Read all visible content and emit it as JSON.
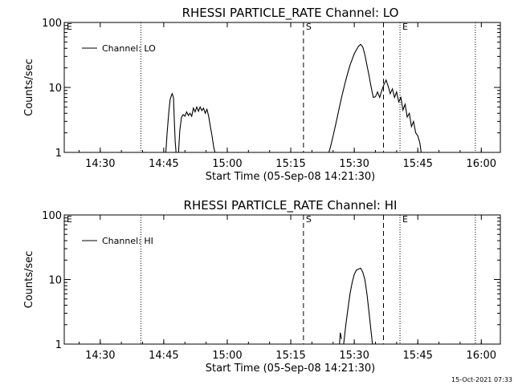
{
  "footer": {
    "timestamp": "15-Oct-2021 07:33"
  },
  "chart_data": [
    {
      "type": "line",
      "title": "RHESSI PARTICLE_RATE Channel: LO",
      "xlabel": "Start Time (05-Sep-08 14:21:30)",
      "ylabel": "Counts/sec",
      "xscale": "linear",
      "yscale": "log",
      "x_unit": "minutes since 14:21:30",
      "xlim": [
        0,
        103
      ],
      "ylim": [
        1,
        100
      ],
      "grid": false,
      "legend": {
        "position": "top-left",
        "entries": [
          "Channel: LO"
        ]
      },
      "x_ticks": [
        {
          "value": 8.5,
          "label": "14:30"
        },
        {
          "value": 23.5,
          "label": "14:45"
        },
        {
          "value": 38.5,
          "label": "15:00"
        },
        {
          "value": 53.5,
          "label": "15:15"
        },
        {
          "value": 68.5,
          "label": "15:30"
        },
        {
          "value": 83.5,
          "label": "15:45"
        },
        {
          "value": 98.5,
          "label": "16:00"
        }
      ],
      "y_ticks": [
        {
          "value": 1,
          "label": "1"
        },
        {
          "value": 10,
          "label": "10"
        },
        {
          "value": 100,
          "label": "100"
        }
      ],
      "markers": [
        {
          "x": 0,
          "label": "E",
          "style": "dotted"
        },
        {
          "x": 18.1,
          "label": "",
          "style": "dotted"
        },
        {
          "x": 56.5,
          "label": "S",
          "style": "dashed"
        },
        {
          "x": 75.4,
          "label": "",
          "style": "dashed"
        },
        {
          "x": 79.3,
          "label": "E",
          "style": "dotted"
        },
        {
          "x": 97.1,
          "label": "",
          "style": "dotted"
        }
      ],
      "series": [
        {
          "name": "Channel: LO",
          "segments": [
            [
              [
                24.0,
                1.0
              ],
              [
                24.3,
                2.0
              ],
              [
                24.7,
                4.2
              ],
              [
                25.0,
                6.5
              ],
              [
                25.3,
                7.5
              ],
              [
                25.5,
                8.0
              ],
              [
                25.8,
                7.0
              ],
              [
                26.0,
                3.0
              ],
              [
                26.2,
                1.5
              ],
              [
                26.4,
                1.0
              ]
            ],
            [
              [
                27.0,
                1.0
              ],
              [
                27.3,
                2.2
              ],
              [
                27.7,
                3.5
              ],
              [
                28.1,
                3.8
              ],
              [
                28.5,
                3.6
              ],
              [
                28.9,
                4.2
              ],
              [
                29.3,
                3.7
              ],
              [
                29.7,
                4.0
              ],
              [
                30.1,
                3.6
              ],
              [
                30.5,
                4.8
              ],
              [
                30.9,
                4.2
              ],
              [
                31.3,
                5.0
              ],
              [
                31.7,
                4.3
              ],
              [
                32.1,
                5.0
              ],
              [
                32.5,
                4.4
              ],
              [
                32.9,
                4.8
              ],
              [
                33.3,
                4.0
              ],
              [
                33.7,
                4.6
              ],
              [
                34.1,
                3.6
              ],
              [
                34.5,
                2.5
              ],
              [
                34.9,
                1.8
              ],
              [
                35.3,
                1.2
              ],
              [
                35.6,
                1.0
              ]
            ],
            [
              [
                62.5,
                1.0
              ],
              [
                63.0,
                1.3
              ],
              [
                63.5,
                1.8
              ],
              [
                64.0,
                2.5
              ],
              [
                64.5,
                3.5
              ],
              [
                65.0,
                5.0
              ],
              [
                65.5,
                7.0
              ],
              [
                66.0,
                9.5
              ],
              [
                66.5,
                13.0
              ],
              [
                67.0,
                17.0
              ],
              [
                67.5,
                22.0
              ],
              [
                68.0,
                27.0
              ],
              [
                68.5,
                33.0
              ],
              [
                69.0,
                38.0
              ],
              [
                69.5,
                43.0
              ],
              [
                70.0,
                46.0
              ],
              [
                70.5,
                42.0
              ],
              [
                71.0,
                32.0
              ],
              [
                71.5,
                22.0
              ],
              [
                72.0,
                15.0
              ],
              [
                72.5,
                10.0
              ],
              [
                73.0,
                7.0
              ],
              [
                73.5,
                7.2
              ],
              [
                74.0,
                8.5
              ],
              [
                74.5,
                7.0
              ],
              [
                75.0,
                9.0
              ],
              [
                75.5,
                11.0
              ],
              [
                76.0,
                13.0
              ],
              [
                76.5,
                10.5
              ],
              [
                77.0,
                8.0
              ],
              [
                77.5,
                9.5
              ],
              [
                78.0,
                7.0
              ],
              [
                78.5,
                8.5
              ],
              [
                79.0,
                6.0
              ],
              [
                79.5,
                7.0
              ],
              [
                80.0,
                4.5
              ],
              [
                80.5,
                5.5
              ],
              [
                81.0,
                3.5
              ],
              [
                81.5,
                4.0
              ],
              [
                82.0,
                2.5
              ],
              [
                82.5,
                3.0
              ],
              [
                83.0,
                2.0
              ],
              [
                83.5,
                1.8
              ],
              [
                84.0,
                1.4
              ],
              [
                84.3,
                1.0
              ]
            ]
          ]
        }
      ]
    },
    {
      "type": "line",
      "title": "RHESSI PARTICLE_RATE Channel: HI",
      "xlabel": "Start Time (05-Sep-08 14:21:30)",
      "ylabel": "Counts/sec",
      "xscale": "linear",
      "yscale": "log",
      "x_unit": "minutes since 14:21:30",
      "xlim": [
        0,
        103
      ],
      "ylim": [
        1,
        100
      ],
      "grid": false,
      "legend": {
        "position": "top-left",
        "entries": [
          "Channel: HI"
        ]
      },
      "x_ticks": [
        {
          "value": 8.5,
          "label": "14:30"
        },
        {
          "value": 23.5,
          "label": "14:45"
        },
        {
          "value": 38.5,
          "label": "15:00"
        },
        {
          "value": 53.5,
          "label": "15:15"
        },
        {
          "value": 68.5,
          "label": "15:30"
        },
        {
          "value": 83.5,
          "label": "15:45"
        },
        {
          "value": 98.5,
          "label": "16:00"
        }
      ],
      "y_ticks": [
        {
          "value": 1,
          "label": "1"
        },
        {
          "value": 10,
          "label": "10"
        },
        {
          "value": 100,
          "label": "100"
        }
      ],
      "markers": [
        {
          "x": 0,
          "label": "E",
          "style": "dotted"
        },
        {
          "x": 18.1,
          "label": "",
          "style": "dotted"
        },
        {
          "x": 56.5,
          "label": "S",
          "style": "dashed"
        },
        {
          "x": 75.4,
          "label": "",
          "style": "dashed"
        },
        {
          "x": 79.3,
          "label": "E",
          "style": "dotted"
        },
        {
          "x": 97.1,
          "label": "",
          "style": "dotted"
        }
      ],
      "series": [
        {
          "name": "Channel: HI",
          "segments": [
            [
              [
                65.0,
                1.0
              ],
              [
                65.2,
                1.5
              ],
              [
                65.5,
                1.2
              ]
            ],
            [
              [
                66.0,
                1.0
              ],
              [
                66.5,
                2.0
              ],
              [
                67.0,
                3.5
              ],
              [
                67.5,
                6.0
              ],
              [
                68.0,
                9.0
              ],
              [
                68.5,
                12.0
              ],
              [
                69.0,
                14.0
              ],
              [
                69.5,
                14.5
              ],
              [
                70.0,
                15.0
              ],
              [
                70.5,
                13.0
              ],
              [
                71.0,
                10.0
              ],
              [
                71.5,
                6.0
              ],
              [
                72.0,
                3.0
              ],
              [
                72.5,
                1.5
              ],
              [
                72.8,
                1.0
              ]
            ]
          ]
        }
      ]
    }
  ]
}
